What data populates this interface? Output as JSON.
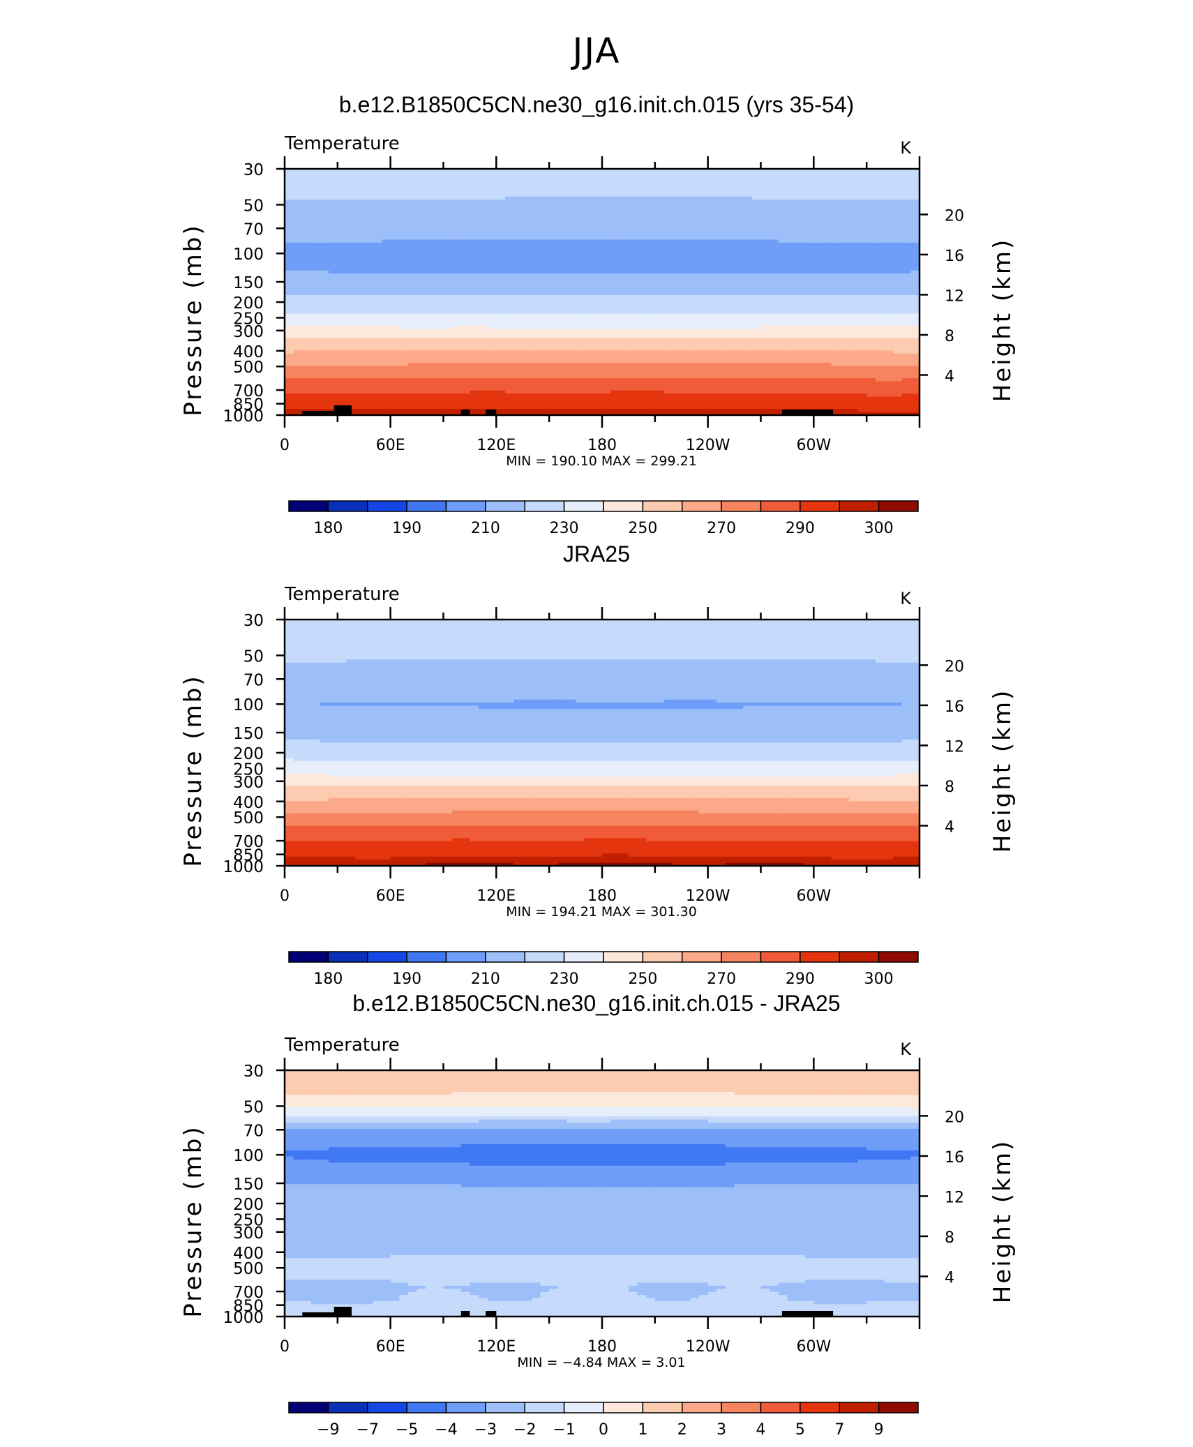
{
  "figure_title": "JJA",
  "chart_data": [
    {
      "type": "heatmap",
      "title": "b.e12.B1850C5CN.ne30_g16.init.ch.015 (yrs 35-54)",
      "left_label": "Temperature",
      "right_label": "K",
      "ylabel": "Pressure (mb)",
      "y2label": "Height (km)",
      "x_ticks": [
        "0",
        "60E",
        "120E",
        "180",
        "120W",
        "60W"
      ],
      "y_ticks": [
        "30",
        "50",
        "70",
        "100",
        "150",
        "200",
        "250",
        "300",
        "400",
        "500",
        "700",
        "850",
        "1000"
      ],
      "y2_ticks": [
        "20",
        "16",
        "12",
        "8",
        "4"
      ],
      "minmax": "MIN = 190.10 MAX = 299.21",
      "min": 190.1,
      "max": 299.21,
      "levels": [
        "180",
        "190",
        "210",
        "230",
        "250",
        "270",
        "290",
        "300"
      ],
      "colors": [
        "#020077",
        "#0930b8",
        "#1546e6",
        "#3f78f2",
        "#6f9ef8",
        "#9dbff9",
        "#c6dbfc",
        "#e5eefa",
        "#fde9dc",
        "#fdcbb0",
        "#fba988",
        "#f6845f",
        "#f05b39",
        "#e5350f",
        "#c02000",
        "#8f0b00"
      ],
      "profile": [
        {
          "p": 30,
          "v": 218
        },
        {
          "p": 40,
          "v": 213
        },
        {
          "p": 55,
          "v": 207
        },
        {
          "p": 75,
          "v": 202
        },
        {
          "p": 100,
          "v": 198
        },
        {
          "p": 130,
          "v": 200
        },
        {
          "p": 160,
          "v": 206
        },
        {
          "p": 200,
          "v": 214
        },
        {
          "p": 250,
          "v": 223
        },
        {
          "p": 300,
          "v": 233
        },
        {
          "p": 350,
          "v": 242
        },
        {
          "p": 400,
          "v": 249
        },
        {
          "p": 450,
          "v": 255
        },
        {
          "p": 500,
          "v": 261
        },
        {
          "p": 600,
          "v": 270
        },
        {
          "p": 700,
          "v": 277
        },
        {
          "p": 800,
          "v": 283
        },
        {
          "p": 900,
          "v": 288
        },
        {
          "p": 1000,
          "v": 293
        }
      ],
      "lat_amplitude": 2.5
    },
    {
      "type": "heatmap",
      "title": "JRA25",
      "left_label": "Temperature",
      "right_label": "K",
      "ylabel": "Pressure (mb)",
      "y2label": "Height (km)",
      "x_ticks": [
        "0",
        "60E",
        "120E",
        "180",
        "120W",
        "60W"
      ],
      "y_ticks": [
        "30",
        "50",
        "70",
        "100",
        "150",
        "200",
        "250",
        "300",
        "400",
        "500",
        "700",
        "850",
        "1000"
      ],
      "y2_ticks": [
        "20",
        "16",
        "12",
        "8",
        "4"
      ],
      "minmax": "MIN = 194.21 MAX = 301.30",
      "min": 194.21,
      "max": 301.3,
      "levels": [
        "180",
        "190",
        "210",
        "230",
        "250",
        "270",
        "290",
        "300"
      ],
      "colors": [
        "#020077",
        "#0930b8",
        "#1546e6",
        "#3f78f2",
        "#6f9ef8",
        "#9dbff9",
        "#c6dbfc",
        "#e5eefa",
        "#fde9dc",
        "#fdcbb0",
        "#fba988",
        "#f6845f",
        "#f05b39",
        "#e5350f",
        "#c02000",
        "#8f0b00"
      ],
      "profile": [
        {
          "p": 30,
          "v": 219
        },
        {
          "p": 40,
          "v": 215
        },
        {
          "p": 55,
          "v": 210
        },
        {
          "p": 75,
          "v": 205
        },
        {
          "p": 100,
          "v": 200
        },
        {
          "p": 130,
          "v": 203
        },
        {
          "p": 160,
          "v": 208
        },
        {
          "p": 200,
          "v": 216
        },
        {
          "p": 250,
          "v": 225
        },
        {
          "p": 300,
          "v": 235
        },
        {
          "p": 350,
          "v": 244
        },
        {
          "p": 400,
          "v": 251
        },
        {
          "p": 450,
          "v": 257
        },
        {
          "p": 500,
          "v": 263
        },
        {
          "p": 600,
          "v": 272
        },
        {
          "p": 700,
          "v": 279
        },
        {
          "p": 800,
          "v": 285
        },
        {
          "p": 900,
          "v": 290
        },
        {
          "p": 1000,
          "v": 295
        }
      ],
      "lat_amplitude": 2.5
    },
    {
      "type": "heatmap",
      "title": "b.e12.B1850C5CN.ne30_g16.init.ch.015 - JRA25",
      "left_label": "Temperature",
      "right_label": "K",
      "ylabel": "Pressure (mb)",
      "y2label": "Height (km)",
      "x_ticks": [
        "0",
        "60E",
        "120E",
        "180",
        "120W",
        "60W"
      ],
      "y_ticks": [
        "30",
        "50",
        "70",
        "100",
        "150",
        "200",
        "250",
        "300",
        "400",
        "500",
        "700",
        "850",
        "1000"
      ],
      "y2_ticks": [
        "20",
        "16",
        "12",
        "8",
        "4"
      ],
      "minmax": "MIN = −4.84 MAX = 3.01",
      "min": -4.84,
      "max": 3.01,
      "levels": [
        "−9",
        "−7",
        "−5",
        "−4",
        "−3",
        "−2",
        "−1",
        "0",
        "1",
        "2",
        "3",
        "4",
        "5",
        "7",
        "9"
      ],
      "colors": [
        "#020077",
        "#0930b8",
        "#1546e6",
        "#3f78f2",
        "#6f9ef8",
        "#9dbff9",
        "#c6dbfc",
        "#e5eefa",
        "#fde9dc",
        "#fdcbb0",
        "#fba988",
        "#f6845f",
        "#f05b39",
        "#e5350f",
        "#c02000",
        "#8f0b00"
      ],
      "profile": [
        {
          "p": 30,
          "v": 2.0
        },
        {
          "p": 40,
          "v": 1.3
        },
        {
          "p": 50,
          "v": 0.3
        },
        {
          "p": 58,
          "v": -1.0
        },
        {
          "p": 65,
          "v": -2.5
        },
        {
          "p": 75,
          "v": -3.6
        },
        {
          "p": 100,
          "v": -4.1
        },
        {
          "p": 140,
          "v": -3.5
        },
        {
          "p": 160,
          "v": -2.7
        },
        {
          "p": 200,
          "v": -2.6
        },
        {
          "p": 300,
          "v": -2.6
        },
        {
          "p": 400,
          "v": -2.5
        },
        {
          "p": 450,
          "v": -1.9
        },
        {
          "p": 550,
          "v": -1.8
        },
        {
          "p": 650,
          "v": -2.4
        },
        {
          "p": 800,
          "v": -2.2
        },
        {
          "p": 900,
          "v": -1.6
        },
        {
          "p": 1000,
          "v": -1.8
        }
      ],
      "lat_amplitude": 0.6
    }
  ]
}
